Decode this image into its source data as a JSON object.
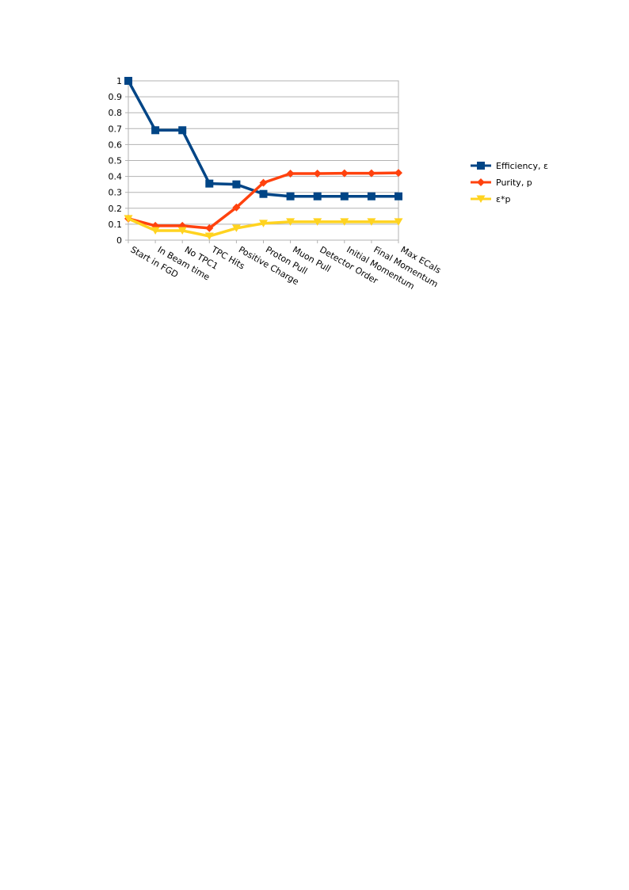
{
  "chart_data": {
    "type": "line",
    "categories": [
      "Start in FGD",
      "In Beam time",
      "No TPC1",
      "TPC Hits",
      "Positive Charge",
      "Proton Pull",
      "Muon Pull",
      "Detector Order",
      "Initial Momentum",
      "Final Momentum",
      "Max ECals"
    ],
    "y_ticks": [
      "0",
      "0.1",
      "0.2",
      "0.3",
      "0.4",
      "0.5",
      "0.6",
      "0.7",
      "0.8",
      "0.9",
      "1"
    ],
    "ylim": [
      0,
      1
    ],
    "grid": true,
    "legend_position": "right",
    "series": [
      {
        "name": "Efficiency, ε",
        "color": "#004586",
        "marker": "square",
        "values": [
          1.0,
          0.69,
          0.69,
          0.355,
          0.35,
          0.29,
          0.275,
          0.275,
          0.275,
          0.275,
          0.275
        ]
      },
      {
        "name": "Purity, p",
        "color": "#ff420e",
        "marker": "diamond",
        "values": [
          0.135,
          0.09,
          0.09,
          0.075,
          0.205,
          0.36,
          0.418,
          0.418,
          0.42,
          0.42,
          0.422
        ]
      },
      {
        "name": "ε*p",
        "color": "#ffd320",
        "marker": "triangle-down",
        "values": [
          0.135,
          0.06,
          0.06,
          0.025,
          0.075,
          0.105,
          0.115,
          0.115,
          0.115,
          0.115,
          0.115
        ]
      }
    ]
  }
}
